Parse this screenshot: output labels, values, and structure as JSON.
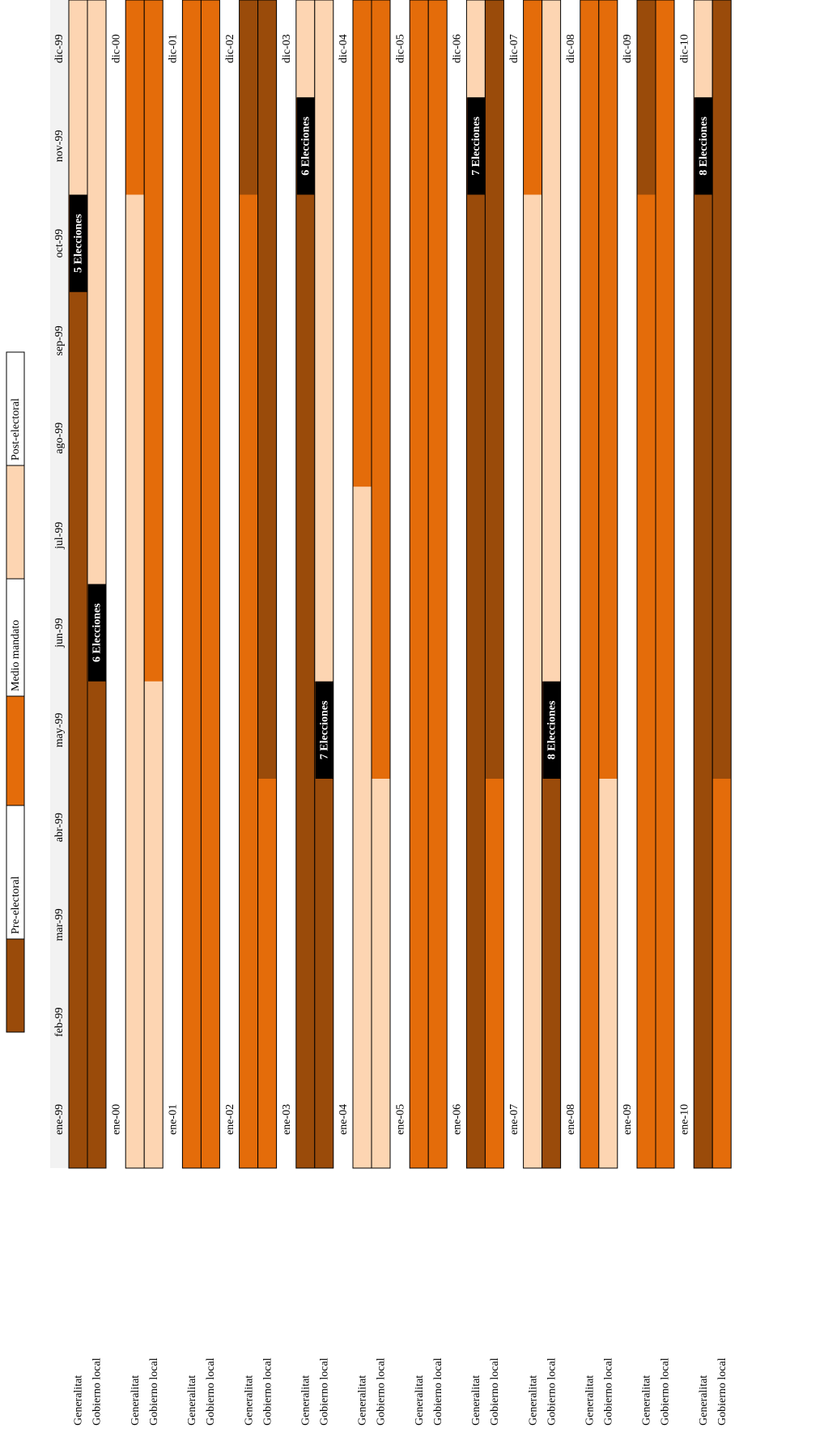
{
  "chart_data": {
    "type": "timeline",
    "legend": [
      {
        "name": "Pre-electoral",
        "color": "#9a4b0a"
      },
      {
        "name": "Medio mandato",
        "color": "#e46c0a"
      },
      {
        "name": "Post-electoral",
        "color": "#fdd5b2"
      }
    ],
    "years": [
      {
        "months": [
          "ene-99",
          "feb-99",
          "mar-99",
          "abr-99",
          "may-99",
          "jun-99",
          "jul-99",
          "ago-99",
          "sep-99",
          "oct-99",
          "nov-99",
          "dic-99"
        ],
        "rows": [
          {
            "label": "Generalitat",
            "segments": [
              {
                "phase": "Pre-electoral",
                "months": 10
              },
              {
                "phase": "Post-electoral",
                "months": 2
              }
            ],
            "election": {
              "label": "5 Elecciones",
              "month": 10
            }
          },
          {
            "label": "Gobierno local",
            "segments": [
              {
                "phase": "Pre-electoral",
                "months": 6
              },
              {
                "phase": "Post-electoral",
                "months": 6
              }
            ],
            "election": {
              "label": "6 Elecciones",
              "month": 6
            }
          }
        ]
      },
      {
        "months": [
          "ene-00",
          null,
          null,
          null,
          null,
          null,
          null,
          null,
          null,
          null,
          null,
          "dic-00"
        ],
        "rows": [
          {
            "label": "Generalitat",
            "segments": [
              {
                "phase": "Post-electoral",
                "months": 10
              },
              {
                "phase": "Medio mandato",
                "months": 2
              }
            ]
          },
          {
            "label": "Gobierno local",
            "segments": [
              {
                "phase": "Post-electoral",
                "months": 5
              },
              {
                "phase": "Medio mandato",
                "months": 7
              }
            ]
          }
        ]
      },
      {
        "months": [
          "ene-01",
          null,
          null,
          null,
          null,
          null,
          null,
          null,
          null,
          null,
          null,
          "dic-01"
        ],
        "rows": [
          {
            "label": "Generalitat",
            "segments": [
              {
                "phase": "Medio mandato",
                "months": 12
              }
            ]
          },
          {
            "label": "Gobierno local",
            "segments": [
              {
                "phase": "Medio mandato",
                "months": 12
              }
            ]
          }
        ]
      },
      {
        "months": [
          "ene-02",
          null,
          null,
          null,
          null,
          null,
          null,
          null,
          null,
          null,
          null,
          "dic-02"
        ],
        "rows": [
          {
            "label": "Generalitat",
            "segments": [
              {
                "phase": "Medio mandato",
                "months": 10
              },
              {
                "phase": "Pre-electoral",
                "months": 2
              }
            ]
          },
          {
            "label": "Gobierno local",
            "segments": [
              {
                "phase": "Medio mandato",
                "months": 4
              },
              {
                "phase": "Pre-electoral",
                "months": 8
              }
            ]
          }
        ]
      },
      {
        "months": [
          "ene-03",
          null,
          null,
          null,
          null,
          null,
          null,
          null,
          null,
          null,
          null,
          "dic-03"
        ],
        "rows": [
          {
            "label": "Generalitat",
            "segments": [
              {
                "phase": "Pre-electoral",
                "months": 11
              },
              {
                "phase": "Post-electoral",
                "months": 1
              }
            ],
            "election": {
              "label": "6 Elecciones",
              "month": 11
            }
          },
          {
            "label": "Gobierno local",
            "segments": [
              {
                "phase": "Pre-electoral",
                "months": 5
              },
              {
                "phase": "Post-electoral",
                "months": 7
              }
            ],
            "election": {
              "label": "7 Elecciones",
              "month": 5
            }
          }
        ]
      },
      {
        "months": [
          "ene-04",
          null,
          null,
          null,
          null,
          null,
          null,
          null,
          null,
          null,
          null,
          "dic-04"
        ],
        "rows": [
          {
            "label": "Generalitat",
            "segments": [
              {
                "phase": "Post-electoral",
                "months": 7
              },
              {
                "phase": "Medio mandato",
                "months": 5
              }
            ]
          },
          {
            "label": "Gobierno local",
            "segments": [
              {
                "phase": "Post-electoral",
                "months": 4
              },
              {
                "phase": "Medio mandato",
                "months": 8
              }
            ]
          }
        ]
      },
      {
        "months": [
          "ene-05",
          null,
          null,
          null,
          null,
          null,
          null,
          null,
          null,
          null,
          null,
          "dic-05"
        ],
        "rows": [
          {
            "label": "Generalitat",
            "segments": [
              {
                "phase": "Medio mandato",
                "months": 12
              }
            ]
          },
          {
            "label": "Gobierno local",
            "segments": [
              {
                "phase": "Medio mandato",
                "months": 12
              }
            ]
          }
        ]
      },
      {
        "months": [
          "ene-06",
          null,
          null,
          null,
          null,
          null,
          null,
          null,
          null,
          null,
          null,
          "dic-06"
        ],
        "rows": [
          {
            "label": "Generalitat",
            "segments": [
              {
                "phase": "Pre-electoral",
                "months": 11
              },
              {
                "phase": "Post-electoral",
                "months": 1
              }
            ],
            "election": {
              "label": "7 Elecciones",
              "month": 11
            }
          },
          {
            "label": "Gobierno local",
            "segments": [
              {
                "phase": "Medio mandato",
                "months": 4
              },
              {
                "phase": "Pre-electoral",
                "months": 8
              }
            ]
          }
        ]
      },
      {
        "months": [
          "ene-07",
          null,
          null,
          null,
          null,
          null,
          null,
          null,
          null,
          null,
          null,
          "dic-07"
        ],
        "rows": [
          {
            "label": "Generalitat",
            "segments": [
              {
                "phase": "Post-electoral",
                "months": 10
              },
              {
                "phase": "Medio mandato",
                "months": 2
              }
            ]
          },
          {
            "label": "Gobierno local",
            "segments": [
              {
                "phase": "Pre-electoral",
                "months": 5
              },
              {
                "phase": "Post-electoral",
                "months": 7
              }
            ],
            "election": {
              "label": "8 Elecciones",
              "month": 5
            }
          }
        ]
      },
      {
        "months": [
          "ene-08",
          null,
          null,
          null,
          null,
          null,
          null,
          null,
          null,
          null,
          null,
          "dic-08"
        ],
        "rows": [
          {
            "label": "Generalitat",
            "segments": [
              {
                "phase": "Medio mandato",
                "months": 12
              }
            ]
          },
          {
            "label": "Gobierno local",
            "segments": [
              {
                "phase": "Post-electoral",
                "months": 4
              },
              {
                "phase": "Medio mandato",
                "months": 8
              }
            ]
          }
        ]
      },
      {
        "months": [
          "ene-09",
          null,
          null,
          null,
          null,
          null,
          null,
          null,
          null,
          null,
          null,
          "dic-09"
        ],
        "rows": [
          {
            "label": "Generalitat",
            "segments": [
              {
                "phase": "Medio mandato",
                "months": 10
              },
              {
                "phase": "Pre-electoral",
                "months": 2
              }
            ]
          },
          {
            "label": "Gobierno local",
            "segments": [
              {
                "phase": "Medio mandato",
                "months": 12
              }
            ]
          }
        ]
      },
      {
        "months": [
          "ene-10",
          null,
          null,
          null,
          null,
          null,
          null,
          null,
          null,
          null,
          null,
          "dic-10"
        ],
        "rows": [
          {
            "label": "Generalitat",
            "segments": [
              {
                "phase": "Pre-electoral",
                "months": 11
              },
              {
                "phase": "Post-electoral",
                "months": 1
              }
            ],
            "election": {
              "label": "8 Elecciones",
              "month": 11
            }
          },
          {
            "label": "Gobierno local",
            "segments": [
              {
                "phase": "Medio mandato",
                "months": 4
              },
              {
                "phase": "Pre-electoral",
                "months": 8
              }
            ]
          }
        ]
      }
    ]
  }
}
